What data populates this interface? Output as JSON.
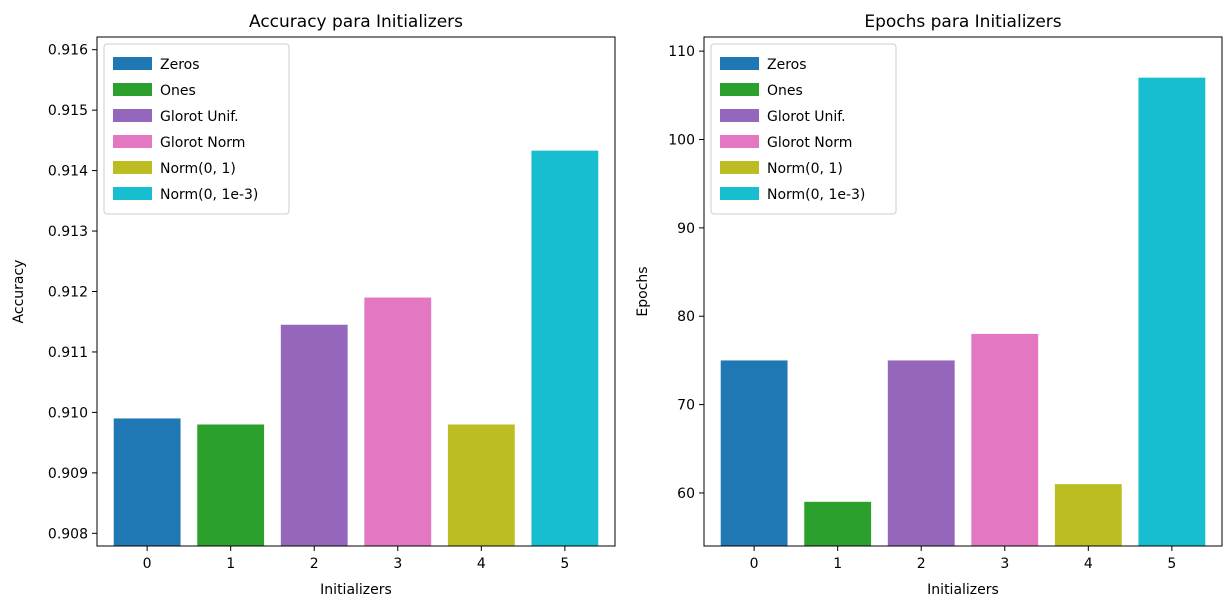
{
  "chart_data": [
    {
      "type": "bar",
      "title": "Accuracy para Initializers",
      "xlabel": "Initializers",
      "ylabel": "Accuracy",
      "categories": [
        "0",
        "1",
        "2",
        "3",
        "4",
        "5"
      ],
      "values": [
        0.9099,
        0.9098,
        0.91145,
        0.9119,
        0.9098,
        0.91433
      ],
      "series_names": [
        "Zeros",
        "Ones",
        "Glorot Unif.",
        "Glorot Norm",
        "Norm(0, 1)",
        "Norm(0, 1e-3)"
      ],
      "colors": [
        "#1f77b4",
        "#2ca02c",
        "#9467bd",
        "#e377c2",
        "#bcbd22",
        "#17becf"
      ],
      "ylim": [
        0.90779,
        0.91621
      ],
      "yticks": [
        "0.908",
        "0.909",
        "0.910",
        "0.911",
        "0.912",
        "0.913",
        "0.914",
        "0.915",
        "0.916"
      ],
      "ytick_values": [
        0.908,
        0.909,
        0.91,
        0.911,
        0.912,
        0.913,
        0.914,
        0.915,
        0.916
      ],
      "legend_position": "top-left",
      "grid": false
    },
    {
      "type": "bar",
      "title": "Epochs para Initializers",
      "xlabel": "Initializers",
      "ylabel": "Epochs",
      "categories": [
        "0",
        "1",
        "2",
        "3",
        "4",
        "5"
      ],
      "values": [
        75,
        59,
        75,
        78,
        61,
        107
      ],
      "series_names": [
        "Zeros",
        "Ones",
        "Glorot Unif.",
        "Glorot Norm",
        "Norm(0, 1)",
        "Norm(0, 1e-3)"
      ],
      "colors": [
        "#1f77b4",
        "#2ca02c",
        "#9467bd",
        "#e377c2",
        "#bcbd22",
        "#17becf"
      ],
      "ylim": [
        54.0,
        111.6
      ],
      "yticks": [
        "60",
        "70",
        "80",
        "90",
        "100",
        "110"
      ],
      "ytick_values": [
        60,
        70,
        80,
        90,
        100,
        110
      ],
      "legend_position": "top-left",
      "grid": false
    }
  ]
}
